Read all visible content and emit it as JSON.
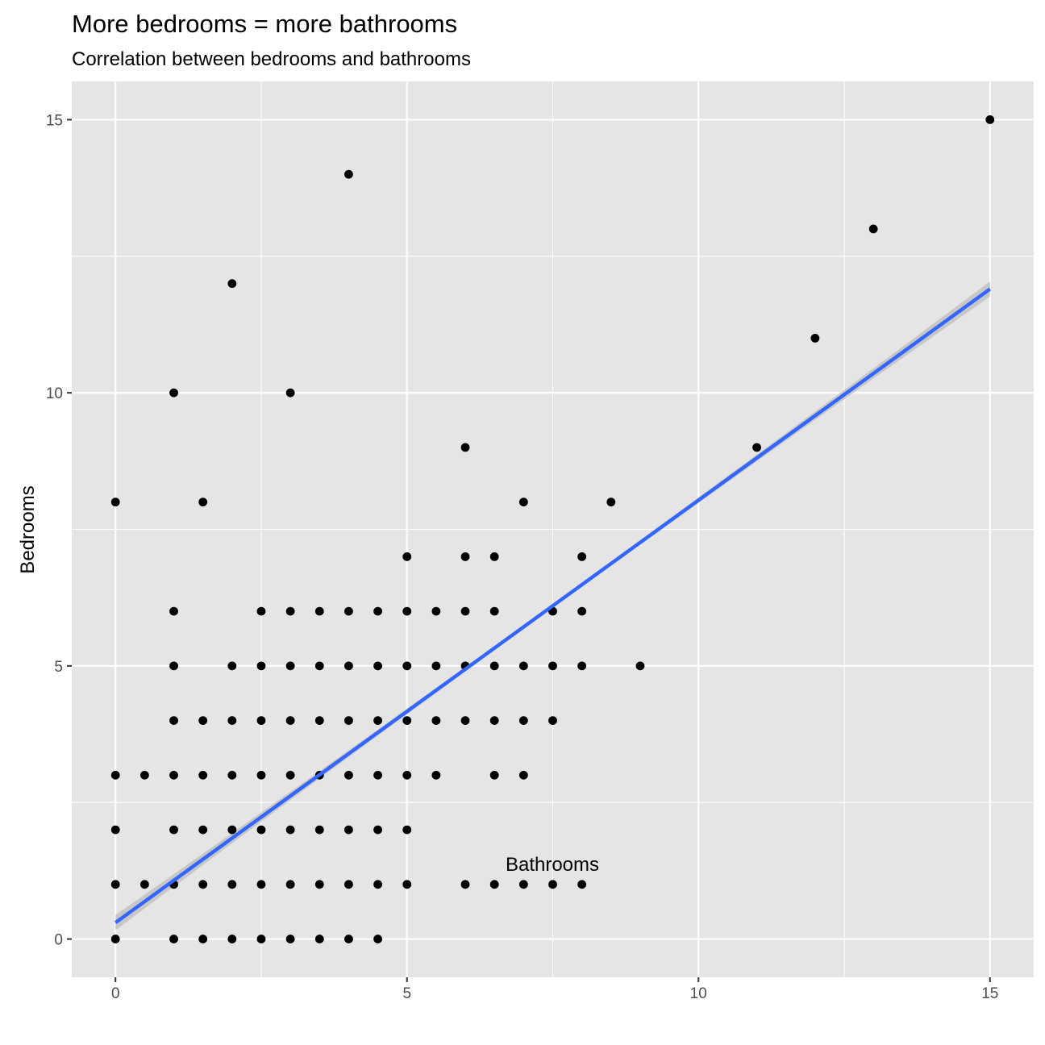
{
  "chart_data": {
    "type": "scatter",
    "title": "More bedrooms = more bathrooms",
    "subtitle": "Correlation between bedrooms and bathrooms",
    "xlabel": "Bathrooms",
    "ylabel": "Bedrooms",
    "xlim": [
      -0.75,
      15.75
    ],
    "ylim": [
      -0.7,
      15.7
    ],
    "x_ticks": [
      0,
      5,
      10,
      15
    ],
    "y_ticks": [
      0,
      5,
      10,
      15
    ],
    "grid": true,
    "colors": {
      "panel": "#e5e5e5",
      "grid": "#ffffff",
      "points": "#000000",
      "trend": "#3366ff",
      "ribbon": "#c2c2c2"
    },
    "trend_line": {
      "method": "lm",
      "x": [
        0,
        15
      ],
      "y": [
        0.3,
        11.9
      ],
      "se_band": true
    },
    "points": [
      {
        "x": 0,
        "y": 0
      },
      {
        "x": 0,
        "y": 1
      },
      {
        "x": 0,
        "y": 2
      },
      {
        "x": 0,
        "y": 3
      },
      {
        "x": 0,
        "y": 8
      },
      {
        "x": 0.5,
        "y": 1
      },
      {
        "x": 0.5,
        "y": 3
      },
      {
        "x": 1,
        "y": 0
      },
      {
        "x": 1,
        "y": 1
      },
      {
        "x": 1,
        "y": 2
      },
      {
        "x": 1,
        "y": 3
      },
      {
        "x": 1,
        "y": 4
      },
      {
        "x": 1,
        "y": 5
      },
      {
        "x": 1,
        "y": 6
      },
      {
        "x": 1,
        "y": 10
      },
      {
        "x": 1.5,
        "y": 0
      },
      {
        "x": 1.5,
        "y": 1
      },
      {
        "x": 1.5,
        "y": 2
      },
      {
        "x": 1.5,
        "y": 3
      },
      {
        "x": 1.5,
        "y": 4
      },
      {
        "x": 1.5,
        "y": 8
      },
      {
        "x": 2,
        "y": 0
      },
      {
        "x": 2,
        "y": 1
      },
      {
        "x": 2,
        "y": 2
      },
      {
        "x": 2,
        "y": 3
      },
      {
        "x": 2,
        "y": 4
      },
      {
        "x": 2,
        "y": 5
      },
      {
        "x": 2,
        "y": 12
      },
      {
        "x": 2.5,
        "y": 0
      },
      {
        "x": 2.5,
        "y": 1
      },
      {
        "x": 2.5,
        "y": 2
      },
      {
        "x": 2.5,
        "y": 3
      },
      {
        "x": 2.5,
        "y": 4
      },
      {
        "x": 2.5,
        "y": 5
      },
      {
        "x": 2.5,
        "y": 6
      },
      {
        "x": 3,
        "y": 0
      },
      {
        "x": 3,
        "y": 1
      },
      {
        "x": 3,
        "y": 2
      },
      {
        "x": 3,
        "y": 3
      },
      {
        "x": 3,
        "y": 4
      },
      {
        "x": 3,
        "y": 5
      },
      {
        "x": 3,
        "y": 6
      },
      {
        "x": 3,
        "y": 10
      },
      {
        "x": 3.5,
        "y": 0
      },
      {
        "x": 3.5,
        "y": 1
      },
      {
        "x": 3.5,
        "y": 2
      },
      {
        "x": 3.5,
        "y": 3
      },
      {
        "x": 3.5,
        "y": 4
      },
      {
        "x": 3.5,
        "y": 5
      },
      {
        "x": 3.5,
        "y": 6
      },
      {
        "x": 4,
        "y": 0
      },
      {
        "x": 4,
        "y": 1
      },
      {
        "x": 4,
        "y": 2
      },
      {
        "x": 4,
        "y": 3
      },
      {
        "x": 4,
        "y": 4
      },
      {
        "x": 4,
        "y": 5
      },
      {
        "x": 4,
        "y": 6
      },
      {
        "x": 4,
        "y": 14
      },
      {
        "x": 4.5,
        "y": 0
      },
      {
        "x": 4.5,
        "y": 1
      },
      {
        "x": 4.5,
        "y": 2
      },
      {
        "x": 4.5,
        "y": 3
      },
      {
        "x": 4.5,
        "y": 4
      },
      {
        "x": 4.5,
        "y": 5
      },
      {
        "x": 4.5,
        "y": 6
      },
      {
        "x": 5,
        "y": 1
      },
      {
        "x": 5,
        "y": 2
      },
      {
        "x": 5,
        "y": 3
      },
      {
        "x": 5,
        "y": 4
      },
      {
        "x": 5,
        "y": 5
      },
      {
        "x": 5,
        "y": 6
      },
      {
        "x": 5,
        "y": 7
      },
      {
        "x": 5.5,
        "y": 3
      },
      {
        "x": 5.5,
        "y": 4
      },
      {
        "x": 5.5,
        "y": 5
      },
      {
        "x": 5.5,
        "y": 6
      },
      {
        "x": 6,
        "y": 1
      },
      {
        "x": 6,
        "y": 4
      },
      {
        "x": 6,
        "y": 5
      },
      {
        "x": 6,
        "y": 6
      },
      {
        "x": 6,
        "y": 7
      },
      {
        "x": 6,
        "y": 9
      },
      {
        "x": 6.5,
        "y": 1
      },
      {
        "x": 6.5,
        "y": 3
      },
      {
        "x": 6.5,
        "y": 4
      },
      {
        "x": 6.5,
        "y": 5
      },
      {
        "x": 6.5,
        "y": 6
      },
      {
        "x": 6.5,
        "y": 7
      },
      {
        "x": 7,
        "y": 1
      },
      {
        "x": 7,
        "y": 3
      },
      {
        "x": 7,
        "y": 4
      },
      {
        "x": 7,
        "y": 5
      },
      {
        "x": 7,
        "y": 8
      },
      {
        "x": 7.5,
        "y": 1
      },
      {
        "x": 7.5,
        "y": 4
      },
      {
        "x": 7.5,
        "y": 5
      },
      {
        "x": 7.5,
        "y": 6
      },
      {
        "x": 8,
        "y": 1
      },
      {
        "x": 8,
        "y": 5
      },
      {
        "x": 8,
        "y": 6
      },
      {
        "x": 8,
        "y": 7
      },
      {
        "x": 8.5,
        "y": 8
      },
      {
        "x": 9,
        "y": 5
      },
      {
        "x": 11,
        "y": 9
      },
      {
        "x": 12,
        "y": 11
      },
      {
        "x": 13,
        "y": 13
      },
      {
        "x": 15,
        "y": 15
      }
    ]
  }
}
